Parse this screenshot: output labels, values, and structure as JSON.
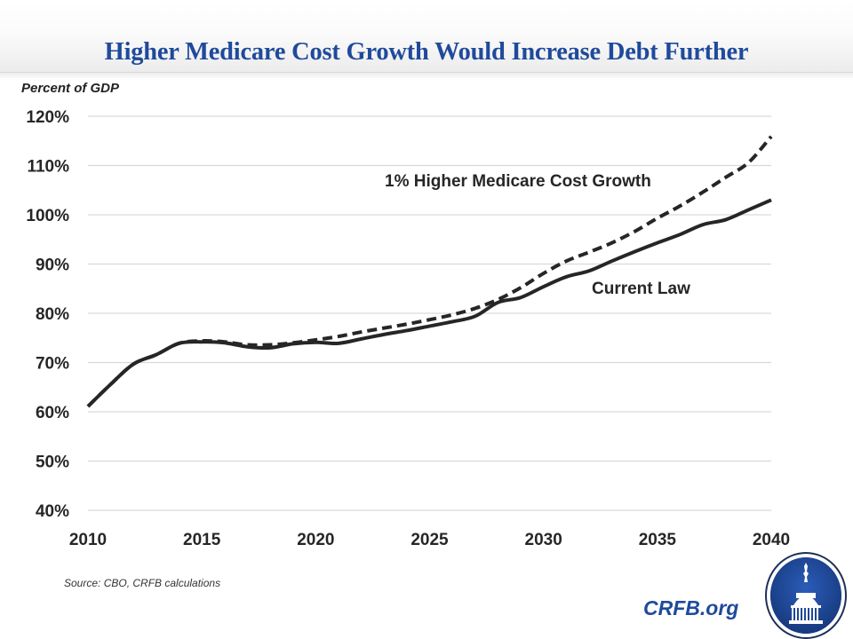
{
  "header": {
    "title": "Higher Medicare Cost Growth Would Increase Debt Further"
  },
  "footer": {
    "source": "Source: CBO, CRFB calculations",
    "brand": "CRFB.org",
    "logo_icon": "capitol-dome-seal-icon"
  },
  "colors": {
    "title": "#1f4a9c",
    "line": "#262626",
    "grid": "#d9d9d9"
  },
  "chart_data": {
    "type": "line",
    "title": "Higher Medicare Cost Growth Would Increase Debt Further",
    "ylabel": "Percent of GDP",
    "xlabel": "",
    "xlim": [
      2010,
      2040
    ],
    "ylim": [
      40,
      120
    ],
    "x_ticks": [
      "2010",
      "2015",
      "2020",
      "2025",
      "2030",
      "2035",
      "2040"
    ],
    "x_tick_values": [
      2010,
      2015,
      2020,
      2025,
      2030,
      2035,
      2040
    ],
    "y_ticks": [
      "40%",
      "50%",
      "60%",
      "70%",
      "80%",
      "90%",
      "100%",
      "110%",
      "120%"
    ],
    "y_tick_values": [
      40,
      50,
      60,
      70,
      80,
      90,
      100,
      110,
      120
    ],
    "grid": true,
    "legend": "none (direct labels)",
    "x": [
      2010,
      2011,
      2012,
      2013,
      2014,
      2015,
      2016,
      2017,
      2018,
      2019,
      2020,
      2021,
      2022,
      2023,
      2024,
      2025,
      2026,
      2027,
      2028,
      2029,
      2030,
      2031,
      2032,
      2033,
      2034,
      2035,
      2036,
      2037,
      2038,
      2039,
      2040
    ],
    "series": [
      {
        "name": "Current Law",
        "style": "solid",
        "label": "Current Law",
        "values": [
          61.1,
          65.6,
          69.7,
          71.6,
          73.9,
          74.2,
          74.0,
          73.2,
          73.0,
          73.8,
          74.1,
          73.9,
          74.8,
          75.7,
          76.5,
          77.4,
          78.3,
          79.4,
          82.2,
          83.2,
          85.4,
          87.4,
          88.6,
          90.6,
          92.5,
          94.3,
          96.0,
          98.0,
          99.0,
          101.0,
          103.0
        ]
      },
      {
        "name": "1% Higher Medicare Cost Growth",
        "style": "dashed",
        "label": "1% Higher Medicare Cost Growth",
        "values": [
          61.1,
          65.6,
          69.7,
          71.6,
          73.9,
          74.4,
          74.2,
          73.6,
          73.6,
          74.0,
          74.6,
          75.3,
          76.2,
          77.0,
          77.8,
          78.7,
          79.7,
          81.0,
          82.8,
          85.2,
          88.1,
          90.6,
          92.4,
          94.3,
          96.6,
          99.3,
          101.8,
          104.6,
          107.6,
          110.6,
          115.9
        ]
      }
    ]
  }
}
